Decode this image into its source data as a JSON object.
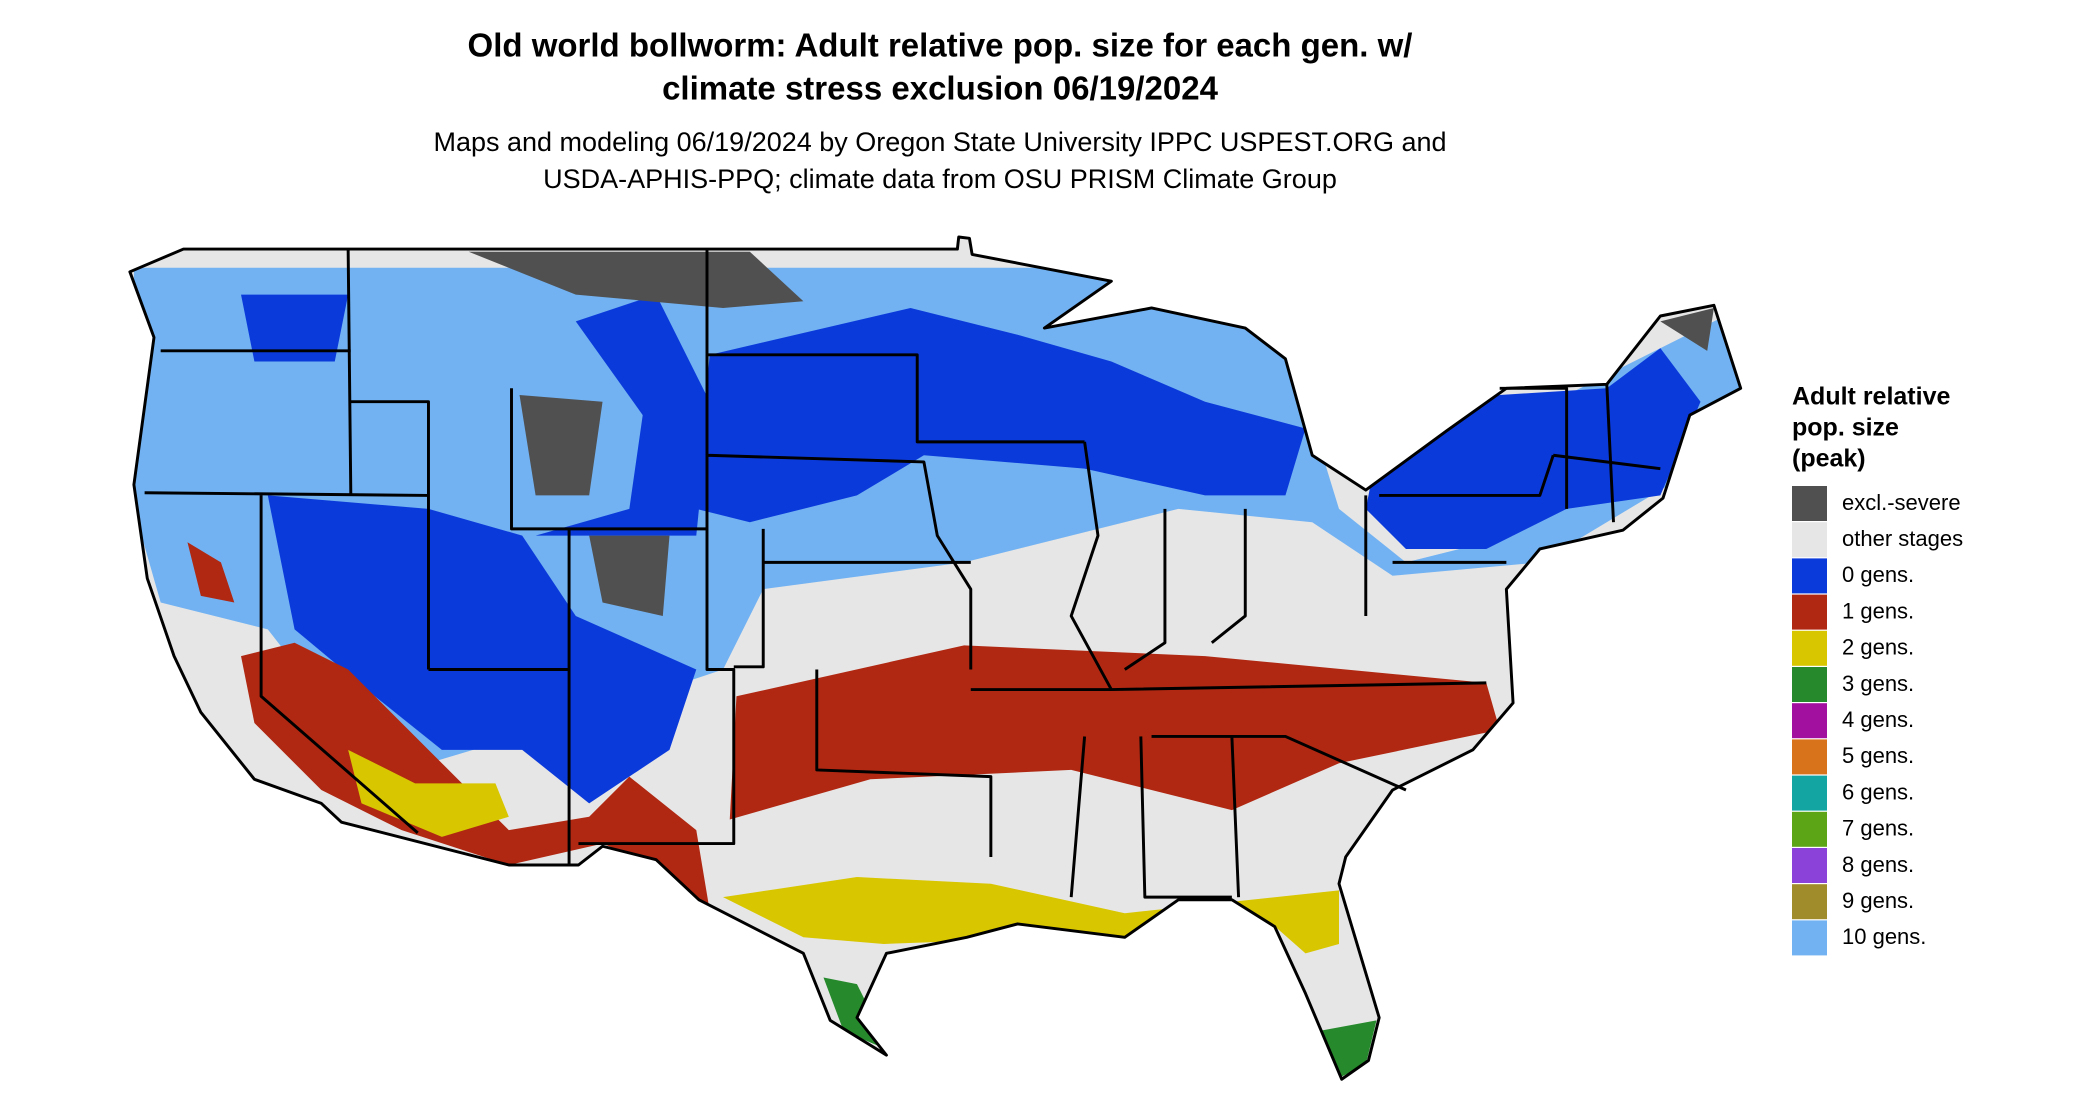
{
  "title": [
    "Old world bollworm: Adult relative pop. size for each gen. w/",
    "climate stress exclusion 06/19/2024"
  ],
  "subtitle": [
    "Maps and modeling 06/19/2024 by Oregon State University IPPC USPEST.ORG and",
    "USDA-APHIS-PPQ; climate data from OSU PRISM Climate Group"
  ],
  "legend": {
    "title": [
      "Adult relative",
      "pop. size",
      "(peak)"
    ],
    "items": [
      {
        "label": "excl.-severe",
        "color": "#505050"
      },
      {
        "label": "other stages",
        "color": "#e6e6e6"
      },
      {
        "label": "0 gens.",
        "color": "#0b3adb"
      },
      {
        "label": "1 gens.",
        "color": "#b02812"
      },
      {
        "label": "2 gens.",
        "color": "#d8c600"
      },
      {
        "label": "3 gens.",
        "color": "#268a2c"
      },
      {
        "label": "4 gens.",
        "color": "#a1109f"
      },
      {
        "label": "5 gens.",
        "color": "#d9731b"
      },
      {
        "label": "6 gens.",
        "color": "#13a5a2"
      },
      {
        "label": "7 gens.",
        "color": "#5ba516"
      },
      {
        "label": "8 gens.",
        "color": "#8a42d8"
      },
      {
        "label": "9 gens.",
        "color": "#a08c2a"
      },
      {
        "label": "10 gens.",
        "color": "#72b2f2"
      }
    ]
  }
}
